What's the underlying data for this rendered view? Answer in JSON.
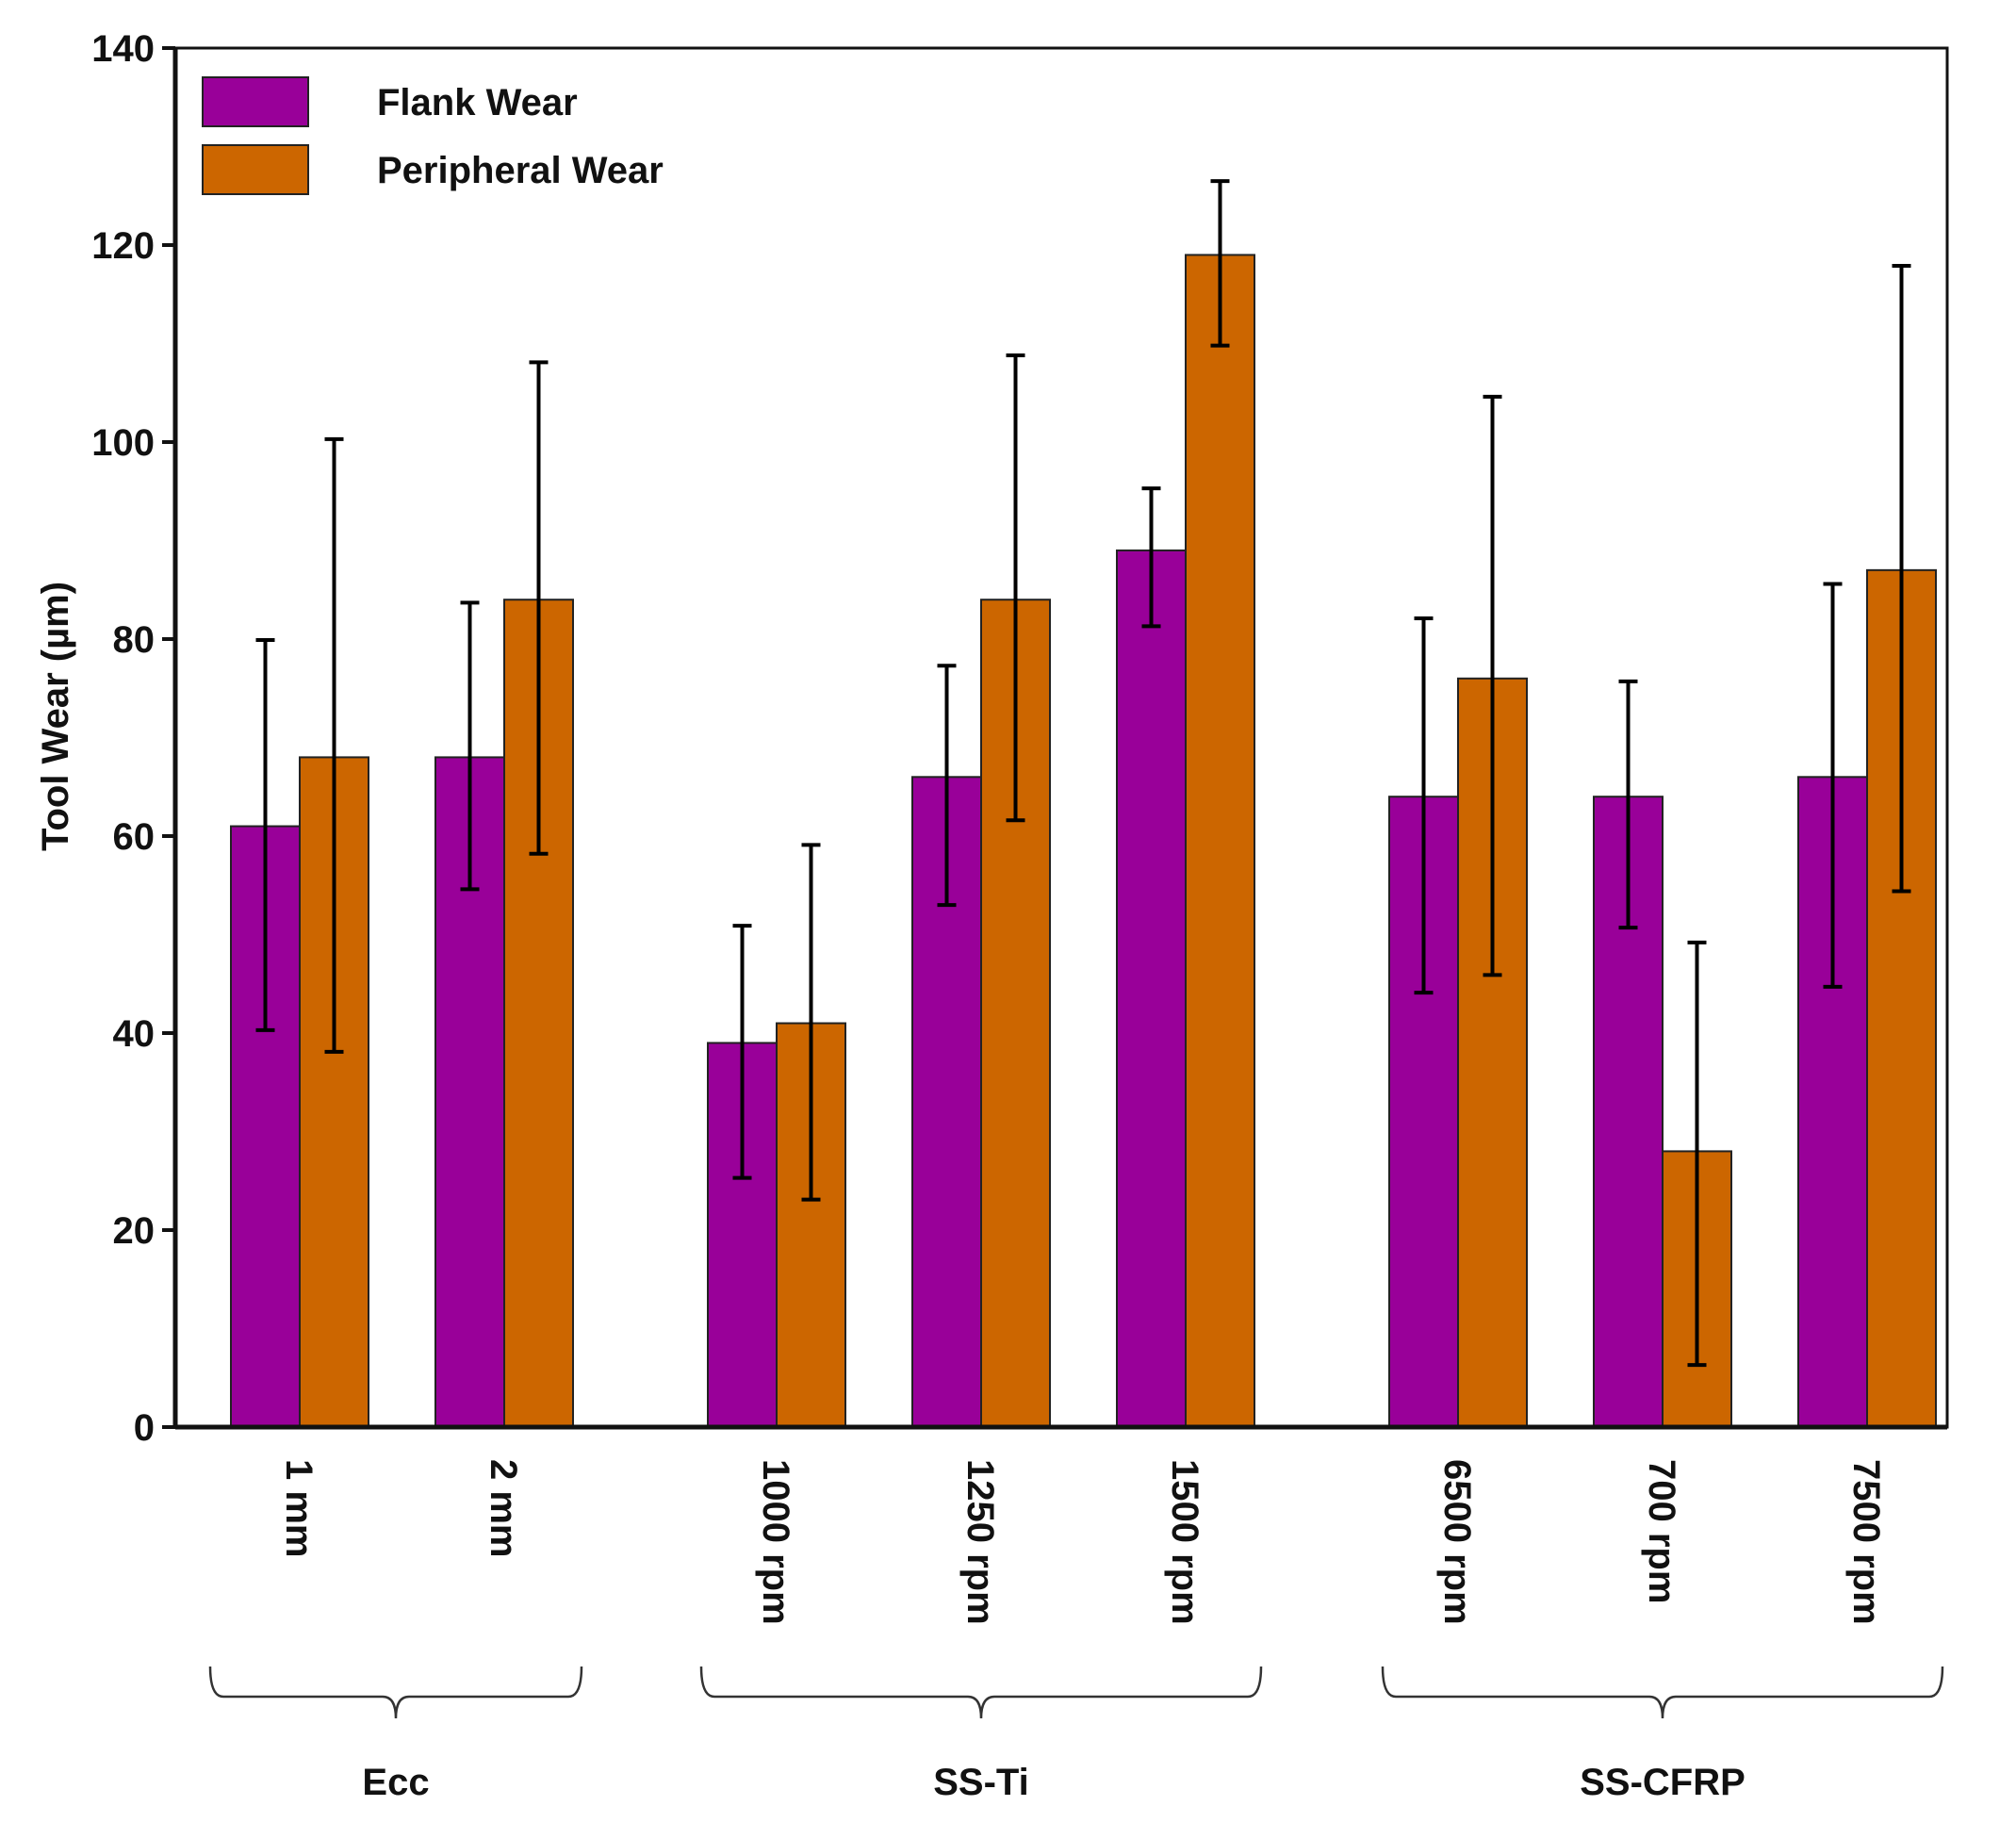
{
  "chart_data": {
    "type": "bar",
    "title": "",
    "xlabel": "",
    "ylabel": "Tool Wear (µm)",
    "ylim": [
      0,
      140
    ],
    "yticks": [
      0,
      20,
      40,
      60,
      80,
      100,
      120,
      140
    ],
    "grid": false,
    "legend_position": "top-left",
    "colors": {
      "flank": "#990099",
      "peripheral": "#cc6600",
      "axis": "#111111"
    },
    "groups": [
      {
        "name": "Ecc",
        "categories": [
          "1 mm",
          "2 mm"
        ]
      },
      {
        "name": "SS-Ti",
        "categories": [
          "1000 rpm",
          "1250 rpm",
          "1500 rpm"
        ]
      },
      {
        "name": "SS-CFRP",
        "categories": [
          "6500 rpm",
          "700 rpm",
          "7500 rpm"
        ]
      }
    ],
    "categories": [
      "1 mm",
      "2 mm",
      "1000 rpm",
      "1250 rpm",
      "1500 rpm",
      "6500 rpm",
      "700 rpm",
      "7500 rpm"
    ],
    "series": [
      {
        "name": "Flank Wear",
        "values": [
          61,
          68,
          39,
          66,
          89,
          64,
          64,
          66
        ],
        "error_low": [
          40.3,
          54.6,
          25.3,
          53,
          81.3,
          44.1,
          50.7,
          44.7
        ],
        "error_high": [
          79.9,
          83.7,
          50.9,
          77.3,
          95.3,
          82.1,
          75.7,
          85.6
        ]
      },
      {
        "name": "Peripheral Wear",
        "values": [
          68,
          84,
          41,
          84,
          119,
          76,
          28,
          87
        ],
        "error_low": [
          38.1,
          58.2,
          23.1,
          61.6,
          109.8,
          45.9,
          6.3,
          54.4
        ],
        "error_high": [
          100.3,
          108.1,
          59.1,
          108.8,
          126.5,
          104.6,
          49.2,
          117.9
        ]
      }
    ]
  }
}
